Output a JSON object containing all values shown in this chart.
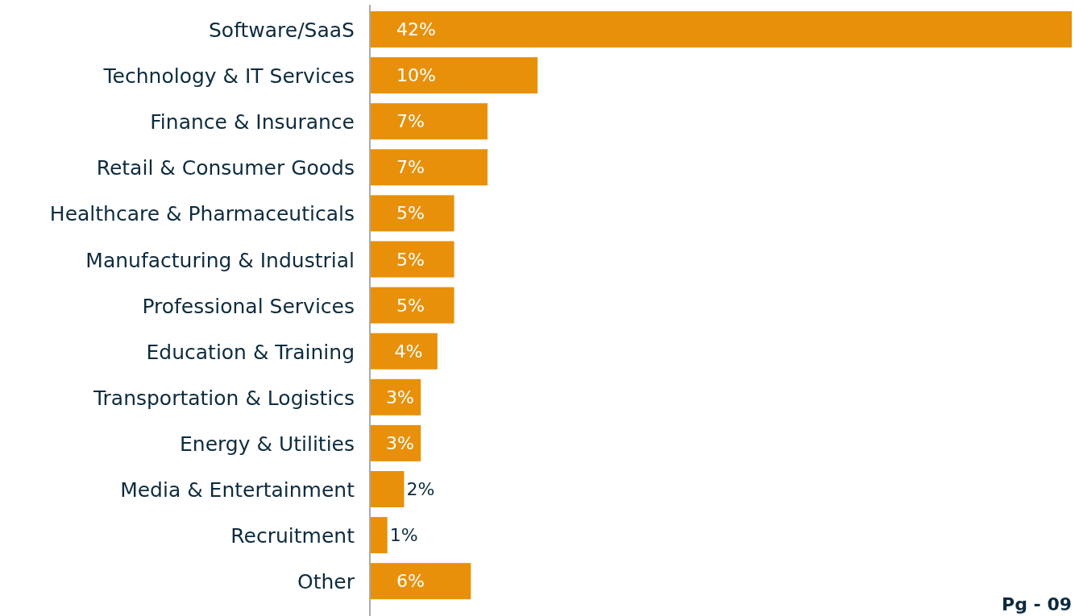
{
  "chart_data": {
    "type": "bar",
    "orientation": "horizontal",
    "categories": [
      "Software/SaaS",
      "Technology & IT Services",
      "Finance & Insurance",
      "Retail & Consumer Goods",
      "Healthcare & Pharmaceuticals",
      "Manufacturing & Industrial",
      "Professional Services",
      "Education & Training",
      "Transportation & Logistics",
      "Energy & Utilities",
      "Media & Entertainment",
      "Recruitment",
      "Other"
    ],
    "values": [
      42,
      10,
      7,
      7,
      5,
      5,
      5,
      4,
      3,
      3,
      2,
      1,
      6
    ],
    "value_labels": [
      "42%",
      "10%",
      "7%",
      "7%",
      "5%",
      "5%",
      "5%",
      "4%",
      "3%",
      "3%",
      "2%",
      "1%",
      "6%"
    ],
    "color": "#e8900a",
    "annotations": [
      "Pg - 09"
    ]
  }
}
